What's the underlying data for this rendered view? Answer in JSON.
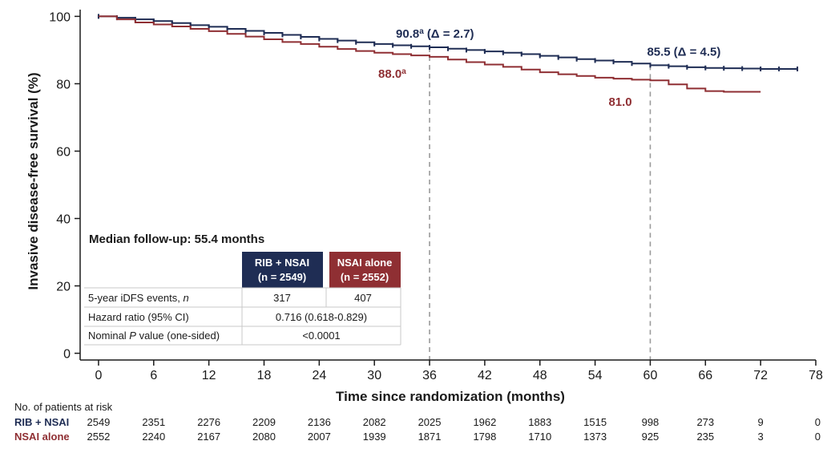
{
  "colors": {
    "rib": "#1f2d54",
    "nsai": "#8f2f33",
    "guide": "#9a9a9a",
    "table_border": "#c8c8c8"
  },
  "chart_data": {
    "type": "line",
    "xlabel": "Time since randomization (months)",
    "ylabel": "Invasive disease-free survival (%)",
    "xlim": [
      -2,
      78
    ],
    "ylim": [
      -2,
      102
    ],
    "xticks": [
      0,
      6,
      12,
      18,
      24,
      30,
      36,
      42,
      48,
      54,
      60,
      66,
      72,
      78
    ],
    "yticks": [
      0,
      20,
      40,
      60,
      80,
      100
    ],
    "grid": false,
    "series": [
      {
        "name": "RIB + NSAI",
        "color_key": "rib",
        "x": [
          0,
          2,
          4,
          6,
          8,
          10,
          12,
          14,
          16,
          18,
          20,
          22,
          24,
          26,
          28,
          30,
          32,
          34,
          36,
          38,
          40,
          42,
          44,
          46,
          48,
          50,
          52,
          54,
          56,
          58,
          60,
          62,
          64,
          66,
          68,
          70,
          72,
          74,
          76
        ],
        "y": [
          100,
          99.6,
          99.1,
          98.6,
          98.0,
          97.4,
          96.9,
          96.3,
          95.7,
          95.1,
          94.5,
          93.9,
          93.3,
          92.8,
          92.3,
          91.8,
          91.4,
          91.1,
          90.8,
          90.4,
          90.0,
          89.6,
          89.2,
          88.8,
          88.3,
          87.8,
          87.3,
          86.9,
          86.5,
          86.0,
          85.5,
          85.2,
          84.9,
          84.7,
          84.6,
          84.5,
          84.4,
          84.4,
          84.4
        ]
      },
      {
        "name": "NSAI alone",
        "color_key": "nsai",
        "x": [
          0,
          2,
          4,
          6,
          8,
          10,
          12,
          14,
          16,
          18,
          20,
          22,
          24,
          26,
          28,
          30,
          32,
          34,
          36,
          38,
          40,
          42,
          44,
          46,
          48,
          50,
          52,
          54,
          56,
          58,
          60,
          62,
          64,
          66,
          68,
          70,
          72
        ],
        "y": [
          100,
          99.1,
          98.2,
          97.6,
          97.0,
          96.3,
          95.6,
          94.8,
          94.0,
          93.2,
          92.4,
          91.8,
          91.0,
          90.3,
          89.7,
          89.2,
          88.8,
          88.4,
          88.0,
          87.2,
          86.4,
          85.7,
          85.0,
          84.2,
          83.4,
          82.8,
          82.3,
          81.8,
          81.5,
          81.2,
          81.0,
          79.8,
          78.6,
          77.8,
          77.6,
          77.6,
          77.6
        ]
      }
    ],
    "guides": [
      {
        "x": 36,
        "y_top": 90.8
      },
      {
        "x": 60,
        "y_top": 85.5
      }
    ],
    "annotations": [
      {
        "series": "rib",
        "value": "90.8",
        "sup": "a",
        "delta": "(Δ = 2.7)",
        "x": 36,
        "y": 90.8
      },
      {
        "series": "rib",
        "value": "85.5",
        "sup": "",
        "delta": "(Δ = 4.5)",
        "x": 60,
        "y": 85.5
      },
      {
        "series": "nsai",
        "value": "88.0",
        "sup": "a",
        "delta": "",
        "x": 36,
        "y": 88.0
      },
      {
        "series": "nsai",
        "value": "81.0",
        "sup": "",
        "delta": "",
        "x": 60,
        "y": 81.0
      }
    ]
  },
  "table": {
    "title": "Median follow-up: 55.4 months",
    "col_rib": "RIB + NSAI",
    "col_rib_n": "(n = 2549)",
    "col_nsai": "NSAI alone",
    "col_nsai_n": "(n = 2552)",
    "row_events": "5-year iDFS events, n",
    "events_rib": "317",
    "events_nsai": "407",
    "row_hr": "Hazard ratio (95% CI)",
    "hr_value": "0.716 (0.618-0.829)",
    "row_p": "Nominal P value (one-sided)",
    "p_value": "<0.0001"
  },
  "risk_table": {
    "title": "No. of patients at risk",
    "rows": [
      {
        "label": "RIB + NSAI",
        "color_key": "rib",
        "values": [
          "2549",
          "2351",
          "2276",
          "2209",
          "2136",
          "2082",
          "2025",
          "1962",
          "1883",
          "1515",
          "998",
          "273",
          "9",
          "0"
        ]
      },
      {
        "label": "NSAI alone",
        "color_key": "nsai",
        "values": [
          "2552",
          "2240",
          "2167",
          "2080",
          "2007",
          "1939",
          "1871",
          "1798",
          "1710",
          "1373",
          "925",
          "235",
          "3",
          "0"
        ]
      }
    ]
  }
}
